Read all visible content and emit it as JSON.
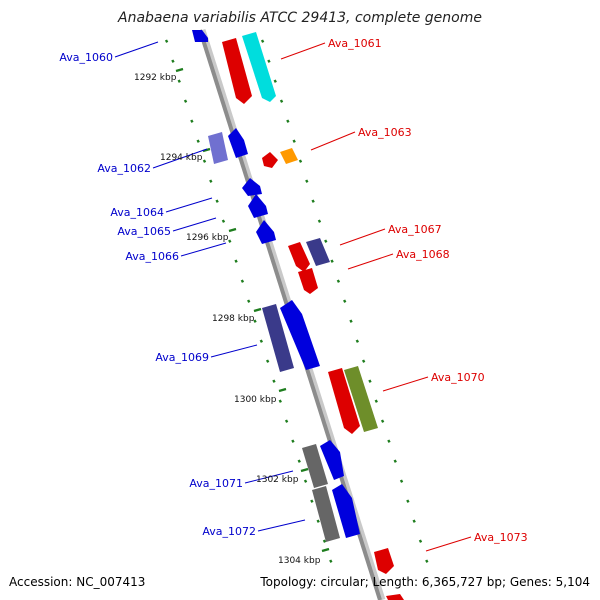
{
  "title": "Anabaena variabilis ATCC 29413, complete genome",
  "accession": "Accession: NC_007413",
  "topology": "Topology: circular; Length: 6,365,727 bp; Genes: 5,104",
  "colors": {
    "backbone": "#8c8c8c",
    "tick": "#1e7d1e",
    "left_label": "#0000cc",
    "right_label": "#dd0000"
  },
  "kbp_labels": [
    "1292 kbp",
    "1294 kbp",
    "1296 kbp",
    "1298 kbp",
    "1300 kbp",
    "1302 kbp",
    "1304 kbp"
  ],
  "left_genes": [
    {
      "name": "Ava_1060",
      "color": "#0000cc"
    },
    {
      "name": "Ava_1062",
      "color": "#0000cc"
    },
    {
      "name": "Ava_1064",
      "color": "#0000cc"
    },
    {
      "name": "Ava_1065",
      "color": "#0000cc"
    },
    {
      "name": "Ava_1066",
      "color": "#0000cc"
    },
    {
      "name": "Ava_1069",
      "color": "#0000cc"
    },
    {
      "name": "Ava_1071",
      "color": "#0000cc"
    },
    {
      "name": "Ava_1072",
      "color": "#0000cc"
    }
  ],
  "right_genes": [
    {
      "name": "Ava_1061",
      "color": "#dd0000"
    },
    {
      "name": "Ava_1063",
      "color": "#dd0000"
    },
    {
      "name": "Ava_1067",
      "color": "#dd0000"
    },
    {
      "name": "Ava_1068",
      "color": "#dd0000"
    },
    {
      "name": "Ava_1070",
      "color": "#dd0000"
    },
    {
      "name": "Ava_1073",
      "color": "#dd0000"
    }
  ]
}
